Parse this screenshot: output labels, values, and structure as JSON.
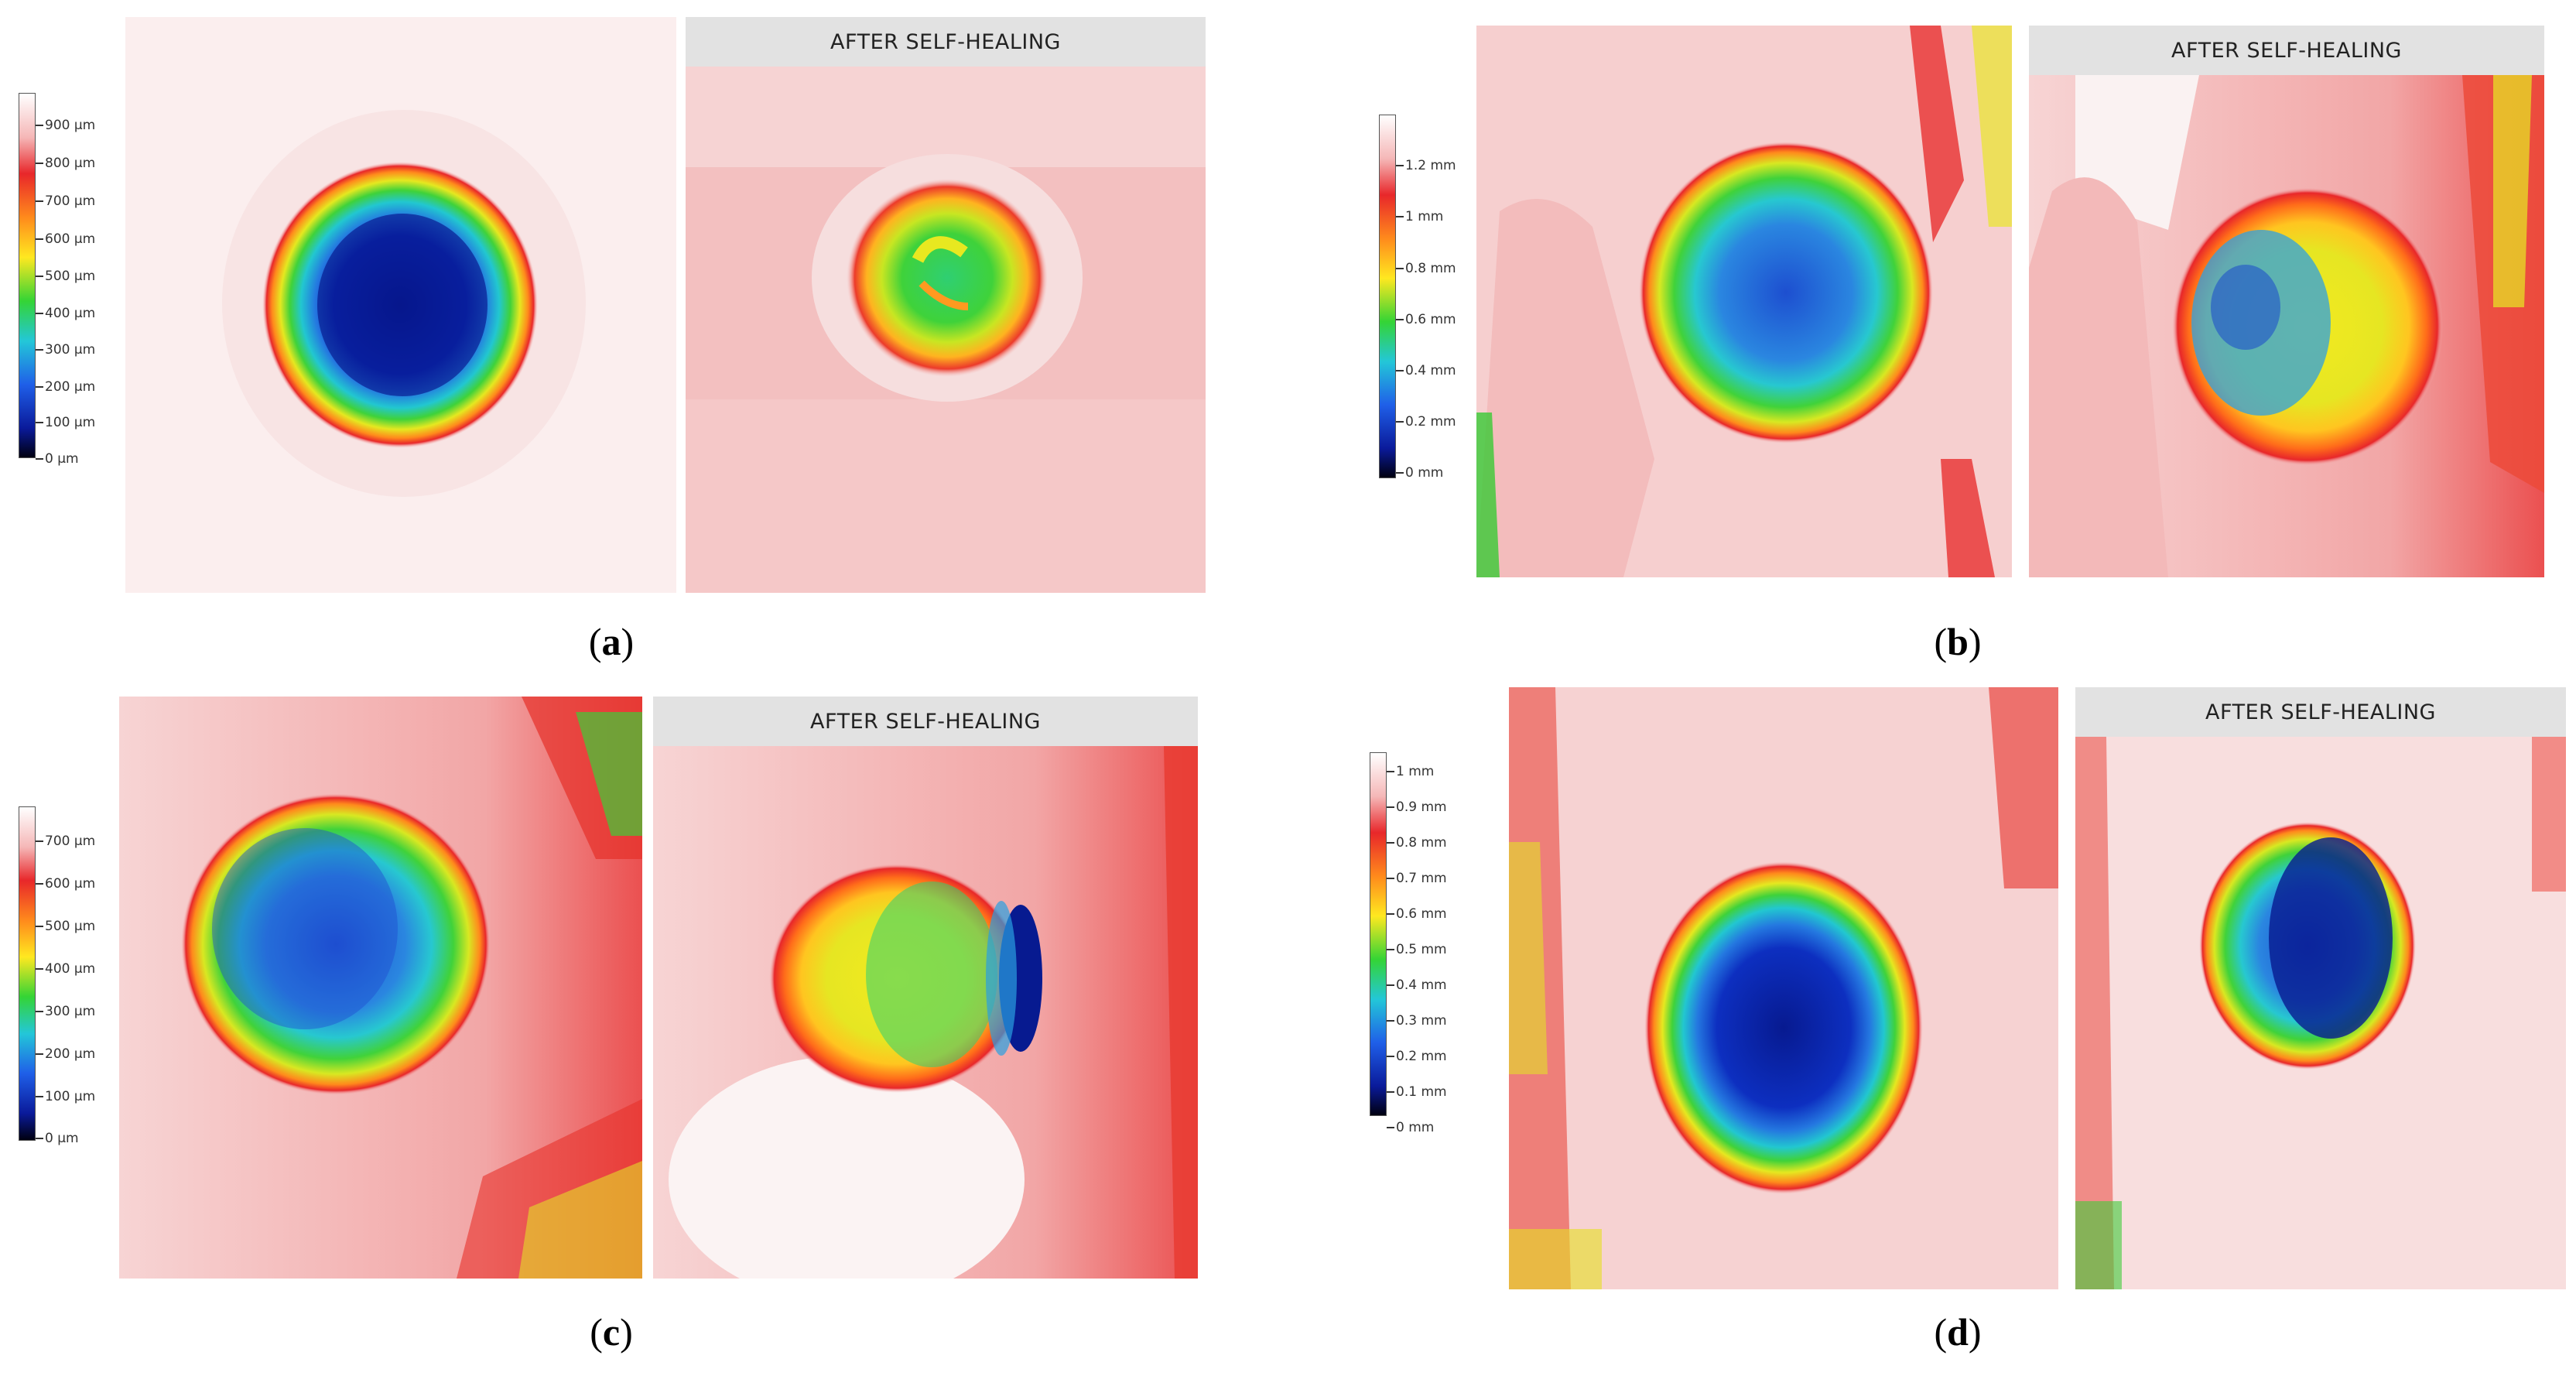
{
  "panels": [
    {
      "id": "a",
      "caption_letter": "a",
      "after_label": "AFTER SELF-HEALING",
      "scale_labels": [
        "900 µm",
        "800 µm",
        "700 µm",
        "600 µm",
        "500 µm",
        "400 µm",
        "300 µm",
        "200 µm",
        "100 µm",
        "0 µm"
      ]
    },
    {
      "id": "b",
      "caption_letter": "b",
      "after_label": "AFTER SELF-HEALING",
      "scale_labels": [
        "1.2 mm",
        "1 mm",
        "0.8 mm",
        "0.6 mm",
        "0.4 mm",
        "0.2 mm",
        "0 mm"
      ]
    },
    {
      "id": "c",
      "caption_letter": "c",
      "after_label": "AFTER SELF-HEALING",
      "scale_labels": [
        "700 µm",
        "600 µm",
        "500 µm",
        "400 µm",
        "300 µm",
        "200 µm",
        "100 µm",
        "0 µm"
      ]
    },
    {
      "id": "d",
      "caption_letter": "d",
      "after_label": "AFTER SELF-HEALING",
      "scale_labels": [
        "1 mm",
        "0.9 mm",
        "0.8 mm",
        "0.7 mm",
        "0.6 mm",
        "0.5 mm",
        "0.4 mm",
        "0.3 mm",
        "0.2 mm",
        "0.1 mm",
        "0 mm"
      ]
    }
  ],
  "colors": {
    "background_pink": "#f7dada",
    "header_gray": "#e2e2e2"
  }
}
